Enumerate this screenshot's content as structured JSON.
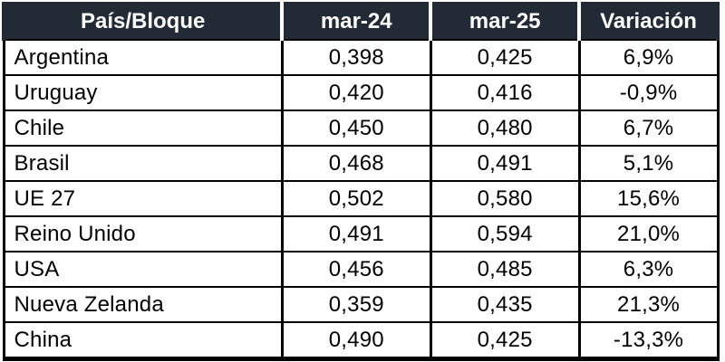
{
  "table": {
    "headers": {
      "country": "País/Bloque",
      "mar24": "mar-24",
      "mar25": "mar-25",
      "variacion": "Variación"
    },
    "rows": [
      {
        "country": "Argentina",
        "mar24": "0,398",
        "mar25": "0,425",
        "variacion": "6,9%"
      },
      {
        "country": "Uruguay",
        "mar24": "0,420",
        "mar25": "0,416",
        "variacion": "-0,9%"
      },
      {
        "country": "Chile",
        "mar24": "0,450",
        "mar25": "0,480",
        "variacion": "6,7%"
      },
      {
        "country": "Brasil",
        "mar24": "0,468",
        "mar25": "0,491",
        "variacion": "5,1%"
      },
      {
        "country": "UE 27",
        "mar24": "0,502",
        "mar25": "0,580",
        "variacion": "15,6%"
      },
      {
        "country": "Reino Unido",
        "mar24": "0,491",
        "mar25": "0,594",
        "variacion": "21,0%"
      },
      {
        "country": "USA",
        "mar24": "0,456",
        "mar25": "0,485",
        "variacion": "6,3%"
      },
      {
        "country": "Nueva Zelanda",
        "mar24": "0,359",
        "mar25": "0,435",
        "variacion": "21,3%"
      },
      {
        "country": "China",
        "mar24": "0,490",
        "mar25": "0,425",
        "variacion": "-13,3%"
      }
    ]
  },
  "colors": {
    "header_bg": "#212A35",
    "header_text": "#FFFFFF",
    "header_divider": "#FFFFFF",
    "body_bg": "#FFFFFF",
    "body_text": "#000000",
    "grid_border": "#000000"
  },
  "chart_data": {
    "type": "table",
    "title": "",
    "categories": [
      "Argentina",
      "Uruguay",
      "Chile",
      "Brasil",
      "UE 27",
      "Reino Unido",
      "USA",
      "Nueva Zelanda",
      "China"
    ],
    "series": [
      {
        "name": "mar-24",
        "values": [
          0.398,
          0.42,
          0.45,
          0.468,
          0.502,
          0.491,
          0.456,
          0.359,
          0.49
        ]
      },
      {
        "name": "mar-25",
        "values": [
          0.425,
          0.416,
          0.48,
          0.491,
          0.58,
          0.594,
          0.485,
          0.435,
          0.425
        ]
      },
      {
        "name": "Variación (%)",
        "values": [
          6.9,
          -0.9,
          6.7,
          5.1,
          15.6,
          21.0,
          6.3,
          21.3,
          -13.3
        ]
      }
    ],
    "number_format": "decimal-comma"
  }
}
